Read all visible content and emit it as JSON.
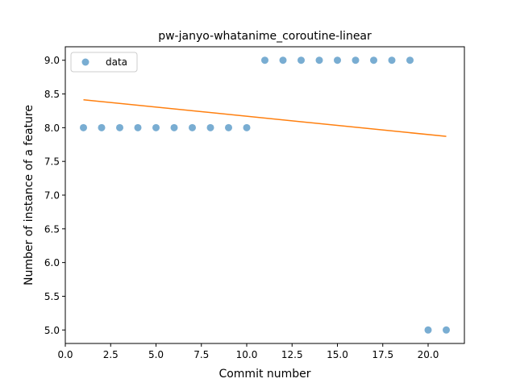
{
  "chart_data": {
    "type": "scatter",
    "title": "pw-janyo-whatanime_coroutine-linear",
    "xlabel": "Commit number",
    "ylabel": "Number of instance of a feature",
    "xlim": [
      0.0,
      22.0
    ],
    "ylim": [
      4.8,
      9.2
    ],
    "xticks": [
      0.0,
      2.5,
      5.0,
      7.5,
      10.0,
      12.5,
      15.0,
      17.5,
      20.0
    ],
    "xtick_labels": [
      "0.0",
      "2.5",
      "5.0",
      "7.5",
      "10.0",
      "12.5",
      "15.0",
      "17.5",
      "20.0"
    ],
    "yticks": [
      5.0,
      5.5,
      6.0,
      6.5,
      7.0,
      7.5,
      8.0,
      8.5,
      9.0
    ],
    "ytick_labels": [
      "5.0",
      "5.5",
      "6.0",
      "6.5",
      "7.0",
      "7.5",
      "8.0",
      "8.5",
      "9.0"
    ],
    "grid": false,
    "legend_position": "top-left",
    "series": [
      {
        "name": "data",
        "kind": "scatter",
        "color": "#1f77b4",
        "x": [
          1,
          2,
          3,
          4,
          5,
          6,
          7,
          8,
          9,
          10,
          11,
          12,
          13,
          14,
          15,
          16,
          17,
          18,
          19,
          20,
          21
        ],
        "y": [
          8,
          8,
          8,
          8,
          8,
          8,
          8,
          8,
          8,
          8,
          9,
          9,
          9,
          9,
          9,
          9,
          9,
          9,
          9,
          5,
          5
        ]
      },
      {
        "kind": "line",
        "color": "#ff7f0e",
        "x": [
          1,
          21
        ],
        "y": [
          8.414,
          7.871
        ]
      }
    ]
  }
}
